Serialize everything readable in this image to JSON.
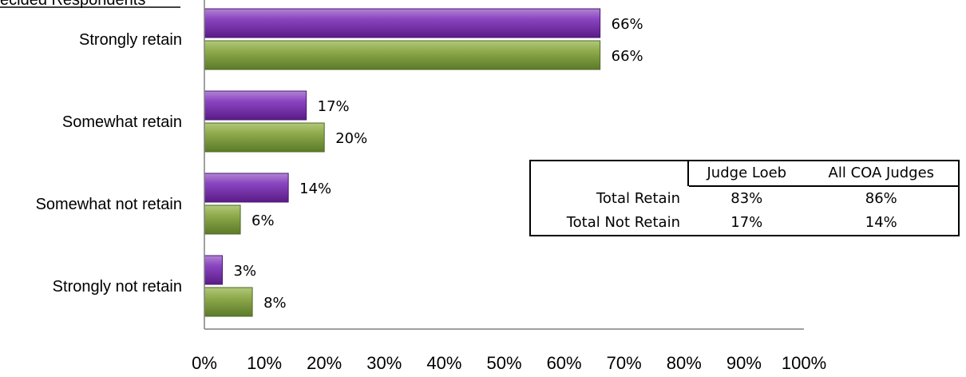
{
  "title_fragment": "ecided Respondents",
  "colors": {
    "series1": "#7030a0",
    "series2": "#77933c"
  },
  "chart_data": {
    "type": "bar",
    "orientation": "horizontal",
    "title": "ecided Respondents",
    "categories": [
      "Strongly retain",
      "Somewhat retain",
      "Somewhat not retain",
      "Strongly not retain"
    ],
    "series": [
      {
        "values": [
          66,
          17,
          14,
          3
        ],
        "labels": [
          "66%",
          "17%",
          "14%",
          "3%"
        ]
      },
      {
        "values": [
          66,
          20,
          6,
          8
        ],
        "labels": [
          "66%",
          "20%",
          "6%",
          "8%"
        ]
      }
    ],
    "xlim": [
      0,
      100
    ],
    "ticks": [
      "0%",
      "10%",
      "20%",
      "30%",
      "40%",
      "50%",
      "60%",
      "70%",
      "80%",
      "90%",
      "100%"
    ],
    "grid": false
  },
  "summary_table": {
    "headers": [
      "Judge Loeb",
      "All COA Judges"
    ],
    "rows": [
      {
        "label": "Total Retain",
        "values": [
          "83%",
          "86%"
        ]
      },
      {
        "label": "Total Not Retain",
        "values": [
          "17%",
          "14%"
        ]
      }
    ]
  }
}
